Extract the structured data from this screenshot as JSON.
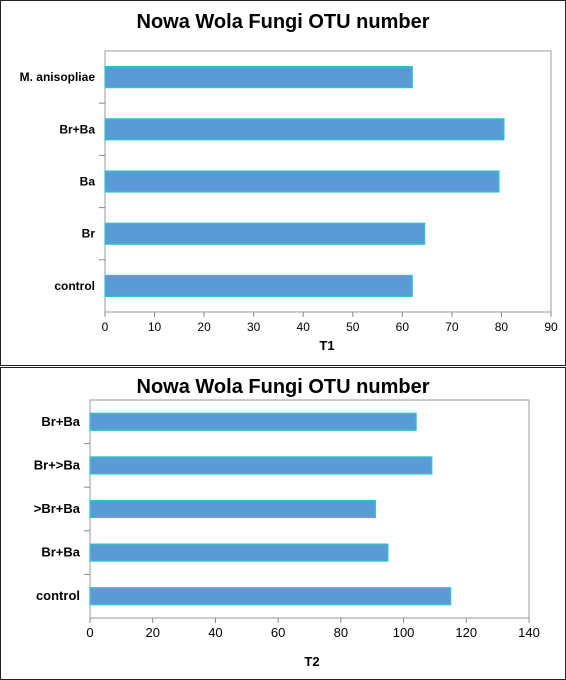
{
  "chart_data": [
    {
      "type": "bar",
      "orientation": "horizontal",
      "title": "Nowa Wola Fungi OTU number",
      "categories": [
        "control",
        "Br",
        "Ba",
        "Br+Ba",
        "M. anisopliae"
      ],
      "values": [
        62,
        64.5,
        79.5,
        80.5,
        62
      ],
      "xlabel": "T1",
      "ylabel": "",
      "xlim": [
        0,
        90
      ],
      "xticks": [
        0,
        10,
        20,
        30,
        40,
        50,
        60,
        70,
        80,
        90
      ],
      "grid": false,
      "colors": {
        "bar_fill": "#5b9bd5",
        "bar_stroke": "#2ec4c7"
      }
    },
    {
      "type": "bar",
      "orientation": "horizontal",
      "title": "Nowa Wola Fungi OTU number",
      "categories": [
        "control",
        "Br+Ba",
        ">Br+Ba",
        "Br+>Ba",
        "Br+Ba"
      ],
      "values": [
        115,
        95,
        91,
        109,
        104
      ],
      "xlabel": "T2",
      "ylabel": "",
      "xlim": [
        0,
        140
      ],
      "xticks": [
        0,
        20,
        40,
        60,
        80,
        100,
        120,
        140
      ],
      "grid": false,
      "colors": {
        "bar_fill": "#5b9bd5",
        "bar_stroke": "#2ec4c7"
      }
    }
  ]
}
